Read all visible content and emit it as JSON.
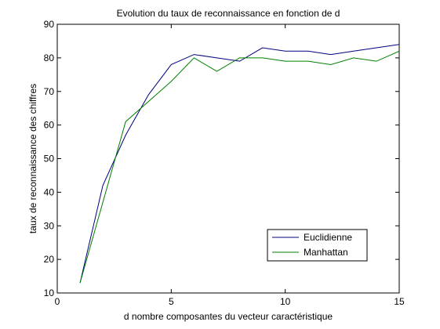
{
  "chart_data": {
    "type": "line",
    "title": "Evolution du taux de reconnaissance en fonction de d",
    "xlabel": "d nombre composantes du vecteur caractéristique",
    "ylabel": "taux de reconnaissance des chiffres",
    "xlim": [
      0,
      15
    ],
    "ylim": [
      10,
      90
    ],
    "xticks": [
      0,
      5,
      10,
      15
    ],
    "yticks": [
      10,
      20,
      30,
      40,
      50,
      60,
      70,
      80,
      90
    ],
    "x": [
      1,
      2,
      3,
      4,
      5,
      6,
      7,
      8,
      9,
      10,
      11,
      12,
      13,
      14,
      15
    ],
    "series": [
      {
        "name": "Euclidienne",
        "color": "#00007f",
        "values": [
          13,
          42,
          57,
          69,
          78,
          81,
          80,
          79,
          83,
          82,
          82,
          81,
          82,
          83,
          84
        ]
      },
      {
        "name": "Manhattan",
        "color": "#007f00",
        "values": [
          13,
          37,
          61,
          67,
          73,
          80,
          76,
          80,
          80,
          79,
          79,
          78,
          80,
          79,
          82
        ]
      }
    ],
    "grid": false,
    "legend_position": "bottom-right"
  }
}
